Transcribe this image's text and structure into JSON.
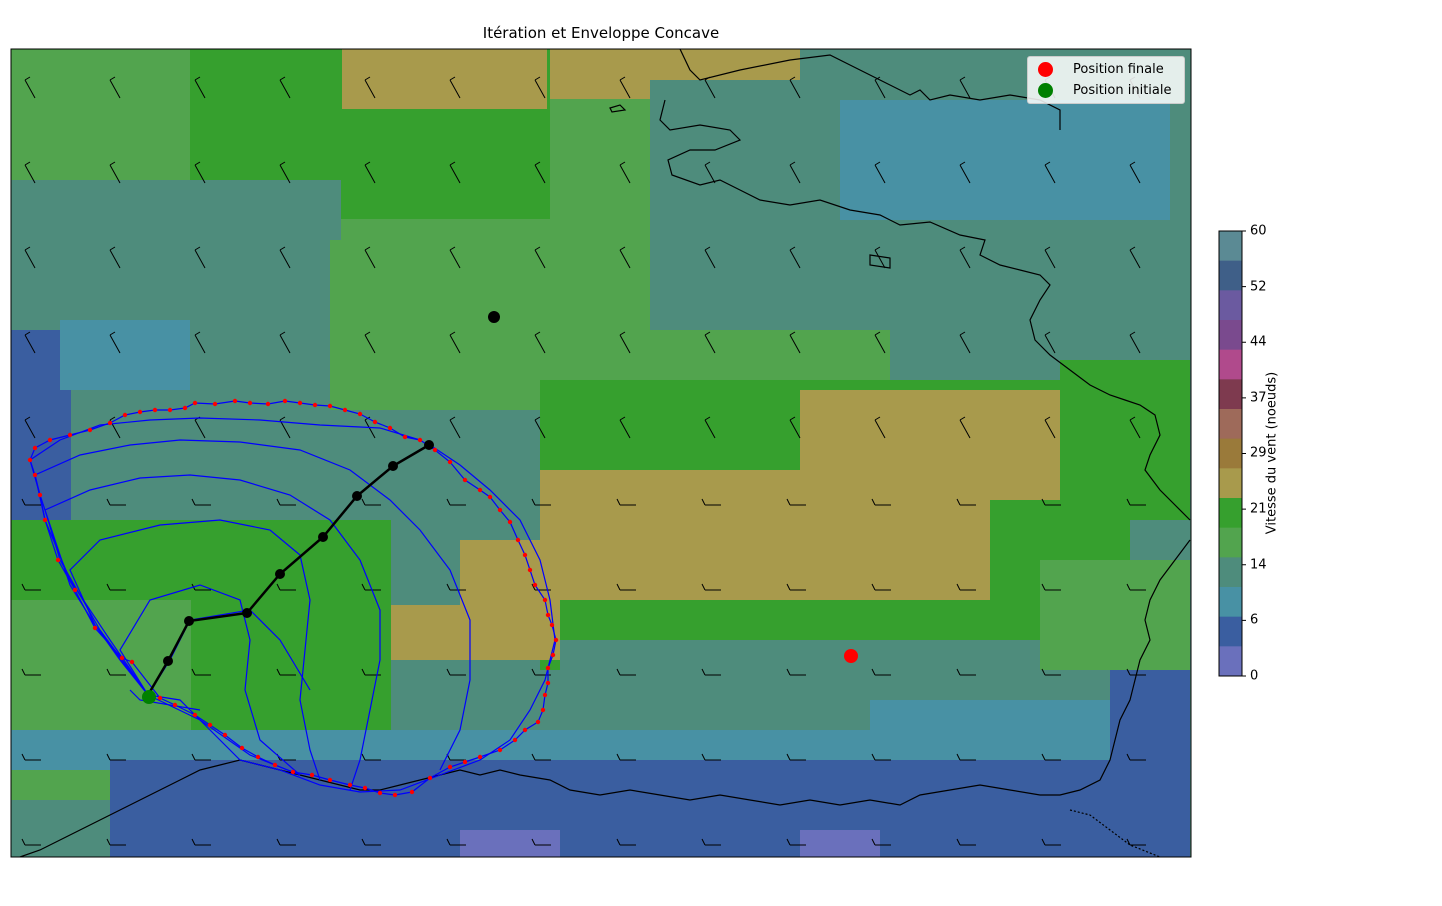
{
  "title": "Itération et Enveloppe Concave",
  "legend": {
    "items": [
      {
        "label": "Position finale",
        "color": "#ff0000"
      },
      {
        "label": "Position initiale",
        "color": "#008000"
      }
    ]
  },
  "colorbar": {
    "label": "Vitesse du vent (noeuds)",
    "ticks": [
      "60",
      "52",
      "44",
      "37",
      "29",
      "21",
      "14",
      "6",
      "0"
    ],
    "range": [
      0,
      60
    ],
    "colors_top_to_bottom": [
      "#5b8a94",
      "#3f5f88",
      "#6b5aa0",
      "#7a4a8e",
      "#b04a8c",
      "#7e3a4f",
      "#9e6a5a",
      "#9a7a3a",
      "#a89a4c",
      "#36a02e",
      "#52a44e",
      "#4e8c7c",
      "#4891a4",
      "#3a5ea0",
      "#6a70bc"
    ]
  },
  "map": {
    "region": "Golfe de Gascogne / France",
    "intermediate_point": "black-dot",
    "markers": {
      "final_position_color": "#ff0000",
      "initial_position_color": "#008000"
    }
  }
}
